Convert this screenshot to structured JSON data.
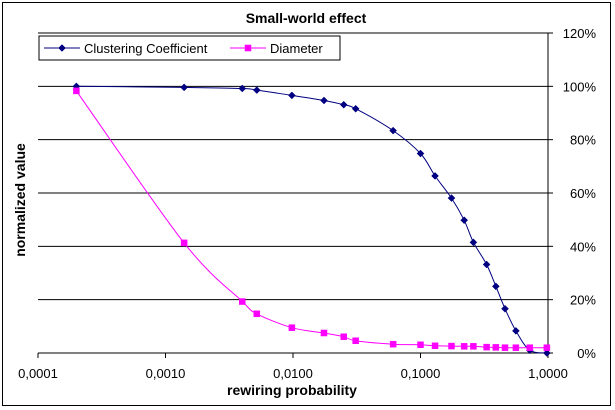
{
  "chart_data": {
    "type": "line",
    "title": "Small-world effect",
    "xlabel": "rewiring probability",
    "ylabel": "normalized value",
    "xscale": "log",
    "xlim": [
      0.0001,
      1.0
    ],
    "x_ticks": [
      0.0001,
      0.001,
      0.01,
      0.1,
      1.0
    ],
    "x_tick_labels": [
      "0,0001",
      "0,0010",
      "0,0100",
      "0,1000",
      "1,0000"
    ],
    "ylim": [
      0,
      120
    ],
    "y_ticks": [
      0,
      20,
      40,
      60,
      80,
      100,
      120
    ],
    "y_tick_labels": [
      "0%",
      "20%",
      "40%",
      "60%",
      "80%",
      "100%",
      "120%"
    ],
    "y_axis_side": "right",
    "grid": "horizontal",
    "legend_position": "top-left",
    "series": [
      {
        "name": "Clustering Coefficient",
        "color": "#000080",
        "marker": "diamond",
        "x": [
          0.0002,
          0.0014,
          0.004,
          0.0052,
          0.0098,
          0.0175,
          0.025,
          0.031,
          0.061,
          0.1,
          0.13,
          0.175,
          0.22,
          0.26,
          0.33,
          0.39,
          0.46,
          0.56,
          0.72,
          0.98
        ],
        "y": [
          100,
          99.6,
          99.2,
          98.6,
          96.6,
          94.7,
          93.1,
          91.6,
          83.4,
          74.8,
          66.4,
          58.1,
          49.8,
          41.5,
          33.2,
          25.0,
          16.6,
          8.3,
          1.0,
          0.0
        ]
      },
      {
        "name": "Diameter",
        "color": "#ff00ff",
        "marker": "square",
        "x": [
          0.0002,
          0.0014,
          0.004,
          0.0052,
          0.0098,
          0.0175,
          0.025,
          0.031,
          0.061,
          0.1,
          0.13,
          0.175,
          0.22,
          0.26,
          0.33,
          0.39,
          0.46,
          0.56,
          0.72,
          0.98
        ],
        "y": [
          98.3,
          41.3,
          19.3,
          14.7,
          9.5,
          7.5,
          6.1,
          4.6,
          3.3,
          3.1,
          2.7,
          2.6,
          2.5,
          2.5,
          2.2,
          2.1,
          2.0,
          2.0,
          2.0,
          2.0
        ]
      }
    ]
  }
}
